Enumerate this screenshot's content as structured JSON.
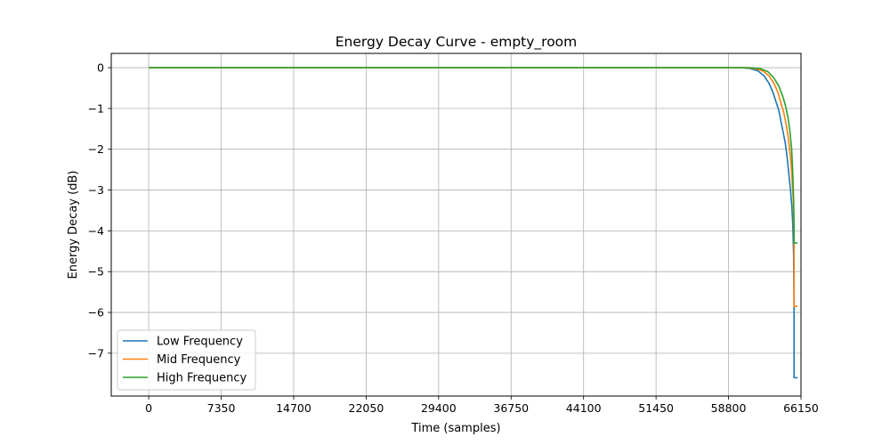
{
  "chart_data": {
    "type": "line",
    "title": "Energy Decay Curve - empty_room",
    "xlabel": "Time (samples)",
    "ylabel": "Energy Decay (dB)",
    "xlim": [
      -3800,
      66150
    ],
    "ylim": [
      -8.05,
      0.35
    ],
    "xticks": [
      0,
      7350,
      14700,
      22050,
      29400,
      36750,
      44100,
      51450,
      58800,
      66150
    ],
    "yticks": [
      0,
      -1,
      -2,
      -3,
      -4,
      -5,
      -6,
      -7
    ],
    "ytick_labels": [
      "0",
      "−1",
      "−2",
      "−3",
      "−4",
      "−5",
      "−6",
      "−7"
    ],
    "grid": true,
    "legend_position": "lower-left",
    "series": [
      {
        "name": "Low Frequency",
        "color": "#1f77b4",
        "x": [
          0,
          60000,
          61000,
          61800,
          62400,
          62900,
          63300,
          63600,
          63900,
          64150,
          64350,
          64550,
          64700,
          64850,
          65000,
          65100,
          65200,
          65300,
          65350,
          65400,
          65450,
          65450,
          65800
        ],
        "y": [
          0,
          0,
          -0.02,
          -0.08,
          -0.2,
          -0.38,
          -0.6,
          -0.82,
          -1.05,
          -1.35,
          -1.6,
          -1.85,
          -2.1,
          -2.45,
          -2.8,
          -3.05,
          -3.35,
          -3.75,
          -4.1,
          -4.6,
          -5.85,
          -7.6,
          -7.6
        ]
      },
      {
        "name": "Mid Frequency",
        "color": "#ff7f0e",
        "x": [
          0,
          60500,
          61500,
          62300,
          62900,
          63400,
          63800,
          64100,
          64400,
          64650,
          64850,
          65000,
          65150,
          65250,
          65350,
          65400,
          65450,
          65450,
          65800
        ],
        "y": [
          0,
          0,
          -0.02,
          -0.08,
          -0.2,
          -0.38,
          -0.6,
          -0.85,
          -1.1,
          -1.4,
          -1.7,
          -2.0,
          -2.35,
          -2.75,
          -3.15,
          -3.6,
          -4.3,
          -5.85,
          -5.85
        ]
      },
      {
        "name": "High Frequency",
        "color": "#2ca02c",
        "x": [
          0,
          61000,
          62000,
          62800,
          63400,
          63900,
          64300,
          64600,
          64850,
          65050,
          65200,
          65300,
          65400,
          65450,
          65450,
          65800
        ],
        "y": [
          0,
          0,
          -0.02,
          -0.1,
          -0.25,
          -0.45,
          -0.7,
          -0.95,
          -1.25,
          -1.6,
          -2.0,
          -2.5,
          -3.2,
          -3.85,
          -4.3,
          -4.3
        ]
      }
    ]
  }
}
